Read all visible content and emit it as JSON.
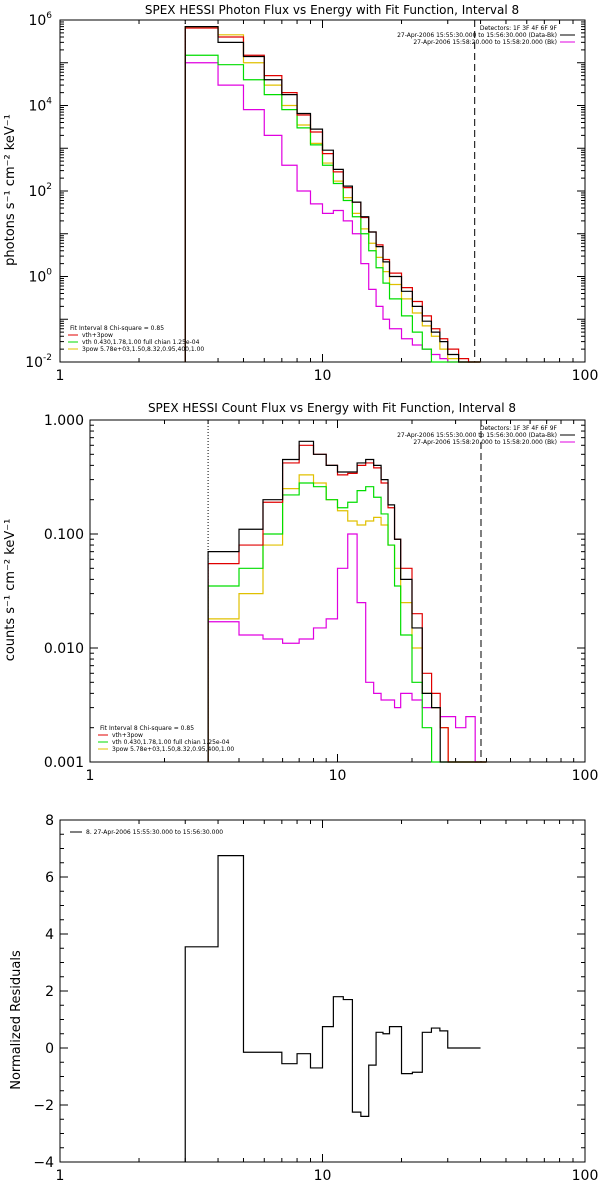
{
  "colors": {
    "background": "#ffffff",
    "axes": "#000000",
    "vth_3pow": "#e00000",
    "vth": "#00dd00",
    "3pow": "#e0c000",
    "bk": "#e000e0",
    "data": "#000000"
  },
  "chart_data": [
    {
      "type": "line",
      "title": "SPEX HESSI Photon Flux vs Energy with Fit Function, Interval 8",
      "ylabel": "photons s⁻¹ cm⁻² keV⁻¹",
      "xscale": "log",
      "yscale": "log",
      "xlim": [
        1,
        100
      ],
      "ylim": [
        0.01,
        1000000
      ],
      "x_ticks": [
        "1",
        "10",
        "100"
      ],
      "y_ticks": [
        {
          "base": "10",
          "exp": "6",
          "value": 1000000
        },
        {
          "base": "10",
          "exp": "4",
          "value": 10000
        },
        {
          "base": "10",
          "exp": "2",
          "value": 100
        },
        {
          "base": "10",
          "exp": "0",
          "value": 1
        },
        {
          "base": "10",
          "exp": "-2",
          "value": 0.01
        }
      ],
      "legend_header": [
        "Detectors: 1F 3F 4F 6F 9F",
        "27-Apr-2006 15:55:30.000 to 15:56:30.000 (Data-Bk)",
        "27-Apr-2006 15:58:20.000 to 15:58:20.000 (Bk)"
      ],
      "fit_legend": [
        "Fit Interval 8    Chi-square = 0.85",
        "vth+3pow",
        "vth 0.430,1.78,1.00  full chian 1.25e-04",
        "3pow 5.78e+03,1.50,8.32,0.95,400,1.00"
      ],
      "vlines": [
        {
          "x": 3,
          "style": "dotted"
        },
        {
          "x": 38,
          "style": "dashed"
        }
      ],
      "bin_edges": [
        3.0,
        4.0,
        5.0,
        6.0,
        7.0,
        8.0,
        9.0,
        10.0,
        11.0,
        12.0,
        13.0,
        14.0,
        15.0,
        16.0,
        17.0,
        18.0,
        20.0,
        22.0,
        24.0,
        26.0,
        28.0,
        30.0,
        33.0,
        36.0,
        40.0
      ],
      "series": [
        {
          "color_key": "data",
          "values": [
            700000,
            300000,
            140000,
            40000,
            18000,
            6500,
            2800,
            900,
            320,
            130,
            55,
            25,
            11,
            5.0,
            2.2,
            1.0,
            0.45,
            0.2,
            0.09,
            0.05,
            0.03,
            0.015,
            0.01,
            0.01
          ]
        },
        {
          "color_key": "vth_3pow",
          "values": [
            650000,
            400000,
            150000,
            50000,
            20000,
            6000,
            2400,
            750,
            280,
            120,
            55,
            24,
            11,
            5.5,
            2.5,
            1.2,
            0.55,
            0.26,
            0.12,
            0.06,
            0.035,
            0.02,
            0.012,
            0.01
          ]
        },
        {
          "color_key": "vth",
          "values": [
            150000,
            90000,
            40000,
            18000,
            8000,
            3000,
            1200,
            400,
            150,
            60,
            25,
            10,
            4.0,
            1.6,
            0.7,
            0.3,
            0.12,
            0.05,
            0.02,
            0.01,
            0.01,
            0.01,
            0.01,
            0.01
          ]
        },
        {
          "color_key": "3pow",
          "values": [
            700000,
            450000,
            100000,
            30000,
            10000,
            3500,
            1300,
            450,
            170,
            70,
            30,
            13,
            6.0,
            2.8,
            1.3,
            0.65,
            0.3,
            0.14,
            0.07,
            0.04,
            0.02,
            0.012,
            0.01,
            0.01
          ]
        },
        {
          "color_key": "bk",
          "values": [
            100000,
            30000,
            8000,
            2000,
            400,
            100,
            50,
            30,
            35,
            20,
            10,
            2.0,
            0.5,
            0.2,
            0.1,
            0.06,
            0.035,
            0.025,
            0.02,
            0.015,
            0.012,
            0.01,
            0.01,
            0.01
          ]
        }
      ]
    },
    {
      "type": "line",
      "title": "SPEX HESSI Count Flux vs Energy with Fit Function, Interval 8",
      "ylabel": "counts s⁻¹ cm⁻² keV⁻¹",
      "xscale": "log",
      "yscale": "log",
      "xlim": [
        1,
        100
      ],
      "ylim": [
        0.001,
        1.0
      ],
      "x_ticks": [
        "1",
        "10",
        "100"
      ],
      "y_ticks": [
        {
          "label": "1.000",
          "value": 1.0
        },
        {
          "label": "0.100",
          "value": 0.1
        },
        {
          "label": "0.010",
          "value": 0.01
        },
        {
          "label": "0.001",
          "value": 0.001
        }
      ],
      "legend_header": [
        "Detectors: 1F 3F 4F 6F 9F",
        "27-Apr-2006 15:55:30.000 to 15:56:30.000 (Data-Bk)",
        "27-Apr-2006 15:58:20.000 to 15:58:20.000 (Bk)"
      ],
      "fit_legend": [
        "Fit Interval 8    Chi-square = 0.85",
        "vth+3pow",
        "vth 0.430,1.78,1.00  full chian 1.25e-04",
        "3pow 5.78e+03,1.50,8.32,0.95,400,1.00"
      ],
      "vlines": [
        {
          "x": 3,
          "style": "dotted"
        },
        {
          "x": 38,
          "style": "dashed"
        }
      ],
      "bin_edges": [
        3.0,
        4.0,
        5.0,
        6.0,
        7.0,
        8.0,
        9.0,
        10.0,
        11.0,
        12.0,
        13.0,
        14.0,
        15.0,
        16.0,
        17.0,
        18.0,
        20.0,
        22.0,
        24.0,
        26.0,
        28.0,
        30.0,
        33.0,
        36.0,
        40.0
      ],
      "series": [
        {
          "color_key": "data",
          "values": [
            0.07,
            0.11,
            0.2,
            0.45,
            0.65,
            0.5,
            0.4,
            0.35,
            0.35,
            0.42,
            0.45,
            0.4,
            0.3,
            0.18,
            0.09,
            0.04,
            0.015,
            0.004,
            0.003,
            0.001,
            0.001,
            0.001,
            0.001,
            0.001
          ]
        },
        {
          "color_key": "vth_3pow",
          "values": [
            0.055,
            0.08,
            0.19,
            0.42,
            0.6,
            0.5,
            0.4,
            0.33,
            0.34,
            0.4,
            0.42,
            0.38,
            0.28,
            0.17,
            0.09,
            0.05,
            0.02,
            0.006,
            0.004,
            0.002,
            0.001,
            0.001,
            0.001,
            0.001
          ]
        },
        {
          "color_key": "vth",
          "values": [
            0.035,
            0.05,
            0.1,
            0.22,
            0.28,
            0.26,
            0.2,
            0.17,
            0.19,
            0.24,
            0.26,
            0.21,
            0.15,
            0.08,
            0.035,
            0.013,
            0.005,
            0.002,
            0.001,
            0.001,
            0.001,
            0.001,
            0.001,
            0.001
          ]
        },
        {
          "color_key": "3pow",
          "values": [
            0.018,
            0.03,
            0.08,
            0.25,
            0.33,
            0.28,
            0.2,
            0.16,
            0.13,
            0.12,
            0.13,
            0.14,
            0.12,
            0.08,
            0.05,
            0.025,
            0.01,
            0.004,
            0.003,
            0.002,
            0.001,
            0.001,
            0.001,
            0.001
          ]
        },
        {
          "color_key": "bk",
          "values": [
            0.017,
            0.013,
            0.012,
            0.011,
            0.012,
            0.015,
            0.018,
            0.05,
            0.1,
            0.025,
            0.005,
            0.004,
            0.0035,
            0.0035,
            0.003,
            0.004,
            0.0035,
            0.003,
            0.003,
            0.0025,
            0.0025,
            0.002,
            0.0025,
            0.001
          ]
        }
      ]
    },
    {
      "type": "line",
      "title": "",
      "ylabel": "Normalized Residuals",
      "xscale": "log",
      "yscale": "linear",
      "xlim": [
        1,
        100
      ],
      "ylim": [
        -4,
        8
      ],
      "x_ticks": [
        "1",
        "10",
        "100"
      ],
      "y_ticks": [
        {
          "label": "8",
          "value": 8
        },
        {
          "label": "6",
          "value": 6
        },
        {
          "label": "4",
          "value": 4
        },
        {
          "label": "2",
          "value": 2
        },
        {
          "label": "0",
          "value": 0
        },
        {
          "label": "−2",
          "value": -2
        },
        {
          "label": "−4",
          "value": -4
        }
      ],
      "legend": [
        "8. 27-Apr-2006 15:55:30.000 to 15:56:30.000"
      ],
      "bin_edges": [
        3.0,
        4.0,
        5.0,
        6.0,
        7.0,
        8.0,
        9.0,
        10.0,
        11.0,
        12.0,
        13.0,
        14.0,
        15.0,
        16.0,
        17.0,
        18.0,
        20.0,
        22.0,
        24.0,
        26.0,
        28.0,
        30.0,
        33.0,
        36.0,
        40.0
      ],
      "series": [
        {
          "color_key": "data",
          "values": [
            3.55,
            6.75,
            -0.15,
            -0.15,
            -0.55,
            -0.2,
            -0.7,
            0.75,
            1.8,
            1.7,
            -2.25,
            -2.4,
            -0.6,
            0.55,
            0.5,
            0.75,
            -0.9,
            -0.85,
            0.55,
            0.7,
            0.6,
            0.0,
            0.0,
            0.0
          ]
        }
      ]
    }
  ]
}
